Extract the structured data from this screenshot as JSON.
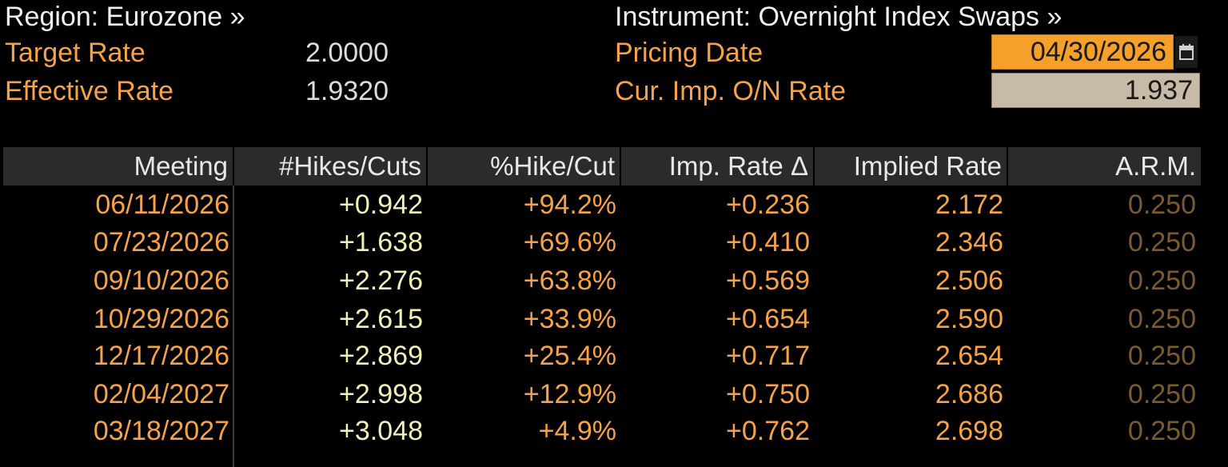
{
  "header": {
    "region_label": "Region: Eurozone »",
    "instrument_label": "Instrument: Overnight Index Swaps »",
    "target_rate_label": "Target Rate",
    "target_rate_value": "2.0000",
    "effective_rate_label": "Effective Rate",
    "effective_rate_value": "1.9320",
    "pricing_date_label": "Pricing Date",
    "pricing_date_value": "04/30/2026",
    "cur_imp_label": "Cur. Imp. O/N Rate",
    "cur_imp_value": "1.937",
    "calendar_icon": "calendar-icon"
  },
  "table": {
    "columns": [
      "Meeting",
      "#Hikes/Cuts",
      "%Hike/Cut",
      "Imp. Rate Δ",
      "Implied Rate",
      "A.R.M."
    ],
    "rows": [
      {
        "meeting": "06/11/2026",
        "hikes": "+0.942",
        "pct": "+94.2%",
        "delta": "+0.236",
        "implied": "2.172",
        "arm": "0.250"
      },
      {
        "meeting": "07/23/2026",
        "hikes": "+1.638",
        "pct": "+69.6%",
        "delta": "+0.410",
        "implied": "2.346",
        "arm": "0.250"
      },
      {
        "meeting": "09/10/2026",
        "hikes": "+2.276",
        "pct": "+63.8%",
        "delta": "+0.569",
        "implied": "2.506",
        "arm": "0.250"
      },
      {
        "meeting": "10/29/2026",
        "hikes": "+2.615",
        "pct": "+33.9%",
        "delta": "+0.654",
        "implied": "2.590",
        "arm": "0.250"
      },
      {
        "meeting": "12/17/2026",
        "hikes": "+2.869",
        "pct": "+25.4%",
        "delta": "+0.717",
        "implied": "2.654",
        "arm": "0.250"
      },
      {
        "meeting": "02/04/2027",
        "hikes": "+2.998",
        "pct": "+12.9%",
        "delta": "+0.750",
        "implied": "2.686",
        "arm": "0.250"
      },
      {
        "meeting": "03/18/2027",
        "hikes": "+3.048",
        "pct": "+4.9%",
        "delta": "+0.762",
        "implied": "2.698",
        "arm": "0.250"
      }
    ]
  },
  "colors": {
    "background": "#000000",
    "label_orange": "#f5a24a",
    "date_box": "#f5a02a",
    "rate_box": "#c7baa6",
    "header_bar": "#2b2b2b",
    "hikes_text": "#f0f0b8",
    "arm_text": "#7a5a2e"
  }
}
